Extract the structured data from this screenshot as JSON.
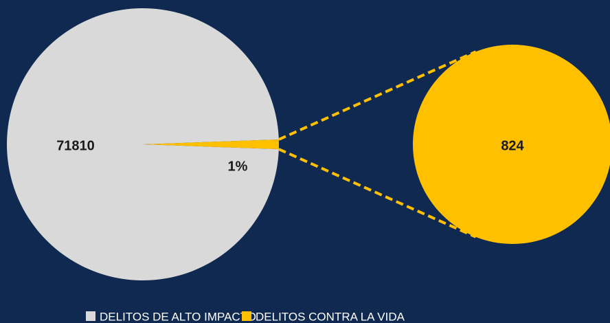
{
  "chart_data": {
    "type": "pie-of-pie",
    "categories": [
      "DELITOS DE ALTO IMPACTO",
      "DELITOS CONTRA LA VIDA"
    ],
    "values": [
      71810,
      824
    ],
    "colors": [
      "#d9d9d9",
      "#ffc000"
    ],
    "annotation": "1%",
    "legend": "bottom"
  }
}
